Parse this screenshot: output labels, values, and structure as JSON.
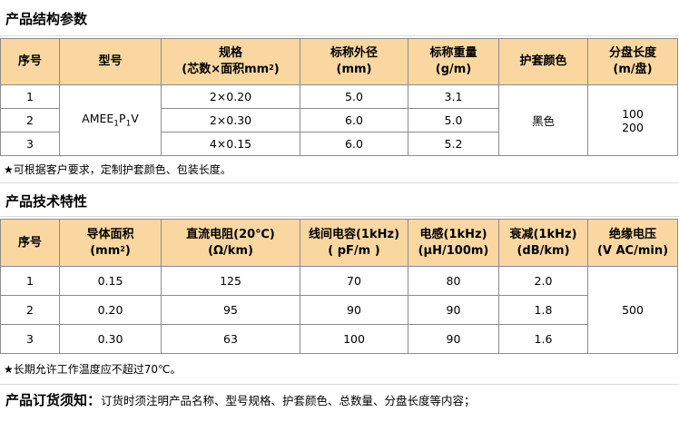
{
  "section1": {
    "title": "产品结构参数",
    "headers": {
      "seq": "序号",
      "model": "型号",
      "spec_line1": "规格",
      "spec_line2_pre": "(芯数×面积mm",
      "spec_sup": "2",
      "spec_line2_post": ")",
      "od_line1": "标称外径",
      "od_line2": "(mm)",
      "weight_line1": "标称重量",
      "weight_line2": "(g/m)",
      "jacket_color": "护套颜色",
      "length_line1": "分盘长度",
      "length_line2": "(m/盘)"
    },
    "model": {
      "base": "AMEE",
      "sub1": "1",
      "mid": "P",
      "sub2": "1",
      "end": "V"
    },
    "rows": [
      {
        "seq": "1",
        "spec": "2×0.20",
        "od": "5.0",
        "weight": "3.1"
      },
      {
        "seq": "2",
        "spec": "2×0.30",
        "od": "6.0",
        "weight": "5.0"
      },
      {
        "seq": "3",
        "spec": "4×0.15",
        "od": "6.0",
        "weight": "5.2"
      }
    ],
    "jacket_color": "黑色",
    "lengths": [
      "100",
      "200"
    ],
    "note": "★可根据客户要求，定制护套颜色、包装长度。"
  },
  "section2": {
    "title": "产品技术特性",
    "headers": {
      "seq": "序号",
      "area_line1": "导体面积",
      "area_line2_pre": "(mm",
      "area_sup": "2",
      "area_line2_post": ")",
      "dcr_line1": "直流电阻(20℃)",
      "dcr_line2": "(Ω/km)",
      "cap_line1": "线间电容(1kHz)",
      "cap_line2": "( pF/m )",
      "ind_line1": "电感(1kHz)",
      "ind_line2": "(μH/100m)",
      "att_line1": "衰减(1kHz)",
      "att_line2": "(dB/km)",
      "volt_line1": "绝缘电压",
      "volt_line2": "(V AC/min)"
    },
    "rows": [
      {
        "seq": "1",
        "area": "0.15",
        "dcr": "125",
        "cap": "70",
        "ind": "80",
        "att": "2.0"
      },
      {
        "seq": "2",
        "area": "0.20",
        "dcr": "95",
        "cap": "90",
        "ind": "90",
        "att": "1.8"
      },
      {
        "seq": "3",
        "area": "0.30",
        "dcr": "63",
        "cap": "100",
        "ind": "90",
        "att": "1.6"
      }
    ],
    "voltage": "500",
    "note": "★长期允许工作温度应不超过70℃。"
  },
  "order": {
    "label": "产品订货须知：",
    "text": "订货时须注明产品名称、型号规格、护套颜色、总数量、分盘长度等内容；"
  }
}
